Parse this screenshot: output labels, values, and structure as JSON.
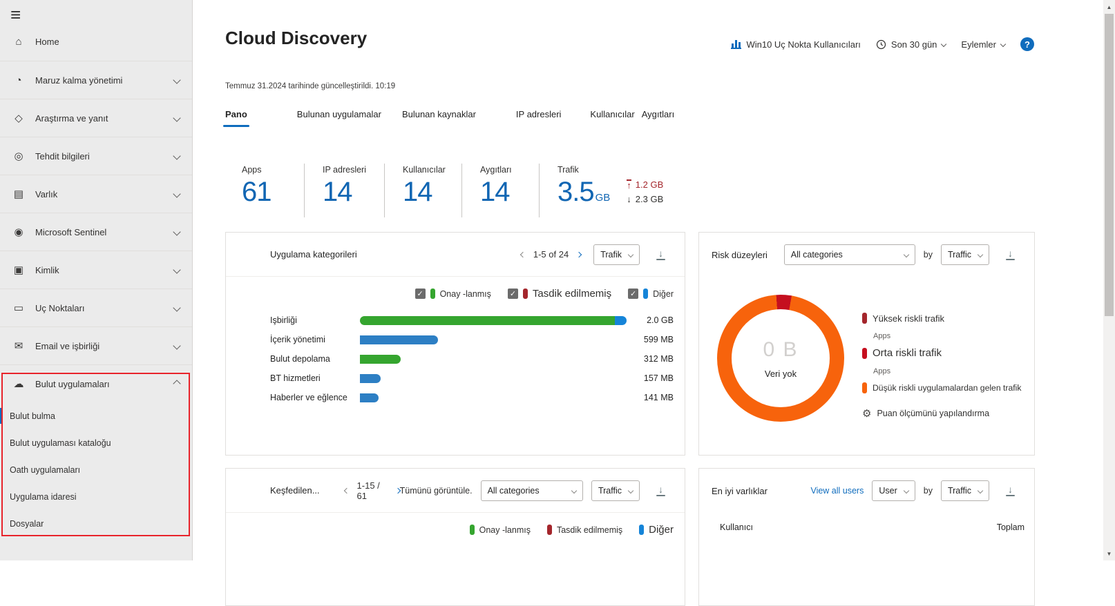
{
  "colors": {
    "accent": "#0f6cbd",
    "stat_number": "#1166b3",
    "green": "#35a52f",
    "blue": "#2d7fc4",
    "other_blue": "#1584d8",
    "maroon": "#a4262c",
    "red": "#c50f1f",
    "orange": "#f7630c",
    "highlight": "#e8242b"
  },
  "sidebar": {
    "menu_icon": "menu",
    "items": [
      {
        "label": "Home",
        "icon": "home"
      },
      {
        "label": "Maruz kalma yönetimi",
        "icon": "exposure"
      },
      {
        "label": "Araştırma ve yanıt",
        "icon": "investigation"
      },
      {
        "label": "Tehdit bilgileri",
        "icon": "threat"
      },
      {
        "label": "Varlık",
        "icon": "assets"
      },
      {
        "label": "Microsoft Sentinel",
        "icon": "sentinel"
      },
      {
        "label": "Kimlik",
        "icon": "identity"
      },
      {
        "label": "Uç Noktaları",
        "icon": "endpoints"
      },
      {
        "label": "Email ve işbirliği",
        "icon": "email"
      },
      {
        "label": "Bulut uygulamaları",
        "icon": "cloud"
      }
    ],
    "subitems": [
      {
        "label": "Bulut bulma"
      },
      {
        "label": "Bulut uygulaması kataloğu"
      },
      {
        "label": "Oath uygulamaları"
      },
      {
        "label": "Uygulama idaresi"
      },
      {
        "label": "Dosyalar"
      }
    ]
  },
  "header": {
    "title": "Cloud Discovery",
    "updated": "Temmuz 31.2024 tarihinde güncelleştirildi. 10:19",
    "report_link": "Win10 Uç Nokta Kullanıcıları",
    "time_range": "Son 30 gün",
    "actions_label": "Eylemler",
    "help_label": "?"
  },
  "tabs": [
    {
      "label": "Pano"
    },
    {
      "label": "Bulunan uygulamalar"
    },
    {
      "label": "Bulunan kaynaklar"
    },
    {
      "label": "IP adresleri"
    },
    {
      "label": "Kullanıcılar"
    },
    {
      "label": "Aygıtları"
    }
  ],
  "stats": [
    {
      "label": "Apps",
      "value": "61"
    },
    {
      "label": "IP adresleri",
      "value": "14"
    },
    {
      "label": "Kullanıcılar",
      "value": "14"
    },
    {
      "label": "Aygıtları",
      "value": "14"
    },
    {
      "label": "Trafik",
      "value": "3.5",
      "unit": "GB",
      "upload": "1.2 GB",
      "download": "2.3 GB"
    }
  ],
  "cards": {
    "app_categories": {
      "title": "Uygulama kategorileri",
      "pagination": "1-5 of 24",
      "metric_select": "Trafik",
      "legend": [
        {
          "label": "Onay -lanmış",
          "color": "green"
        },
        {
          "label": "Tasdik edilmemiş",
          "color": "maroon"
        },
        {
          "label": "Diğer",
          "color": "other_blue"
        }
      ],
      "rows": [
        {
          "label": "Işbirliği",
          "value": "2.0 GB",
          "total_mb": 2048,
          "segments": [
            {
              "color": "green",
              "mb": 1958
            },
            {
              "color": "other_blue",
              "mb": 90
            }
          ]
        },
        {
          "label": "İçerik yönetimi",
          "value": "599 MB",
          "total_mb": 599,
          "segments": [
            {
              "color": "blue",
              "mb": 599
            }
          ]
        },
        {
          "label": "Bulut depolama",
          "value": "312 MB",
          "total_mb": 312,
          "segments": [
            {
              "color": "green",
              "mb": 312
            }
          ]
        },
        {
          "label": "BT hizmetleri",
          "value": "157 MB",
          "total_mb": 157,
          "segments": [
            {
              "color": "blue",
              "mb": 157
            }
          ]
        },
        {
          "label": "Haberler ve eğlence",
          "value": "141 MB",
          "total_mb": 141,
          "segments": [
            {
              "color": "blue",
              "mb": 141
            }
          ]
        }
      ]
    },
    "risk": {
      "title": "Risk düzeyleri",
      "category_select": "All categories",
      "by_label": "by",
      "metric_select": "Traffic",
      "donut": {
        "center_value": "0 B",
        "center_label": "Veri yok"
      },
      "legend": [
        {
          "label": "Yüksek riskli trafik",
          "sub": "Apps",
          "color": "maroon"
        },
        {
          "label": "Orta riskli trafik",
          "sub": "Apps",
          "color": "red"
        },
        {
          "label": "Düşük riskli uygulamalardan gelen trafik",
          "color": "orange"
        }
      ],
      "configure_icon": "gear",
      "configure_label": "Puan ölçümünü yapılandırma"
    },
    "discovered": {
      "title": "Keşfedilen...",
      "pagination": "1-15 / 61",
      "view_all": "Tümünü görüntüle.",
      "category_select": "All categories",
      "metric_select": "Traffic",
      "legend": [
        {
          "label": "Onay -lanmış",
          "color": "green"
        },
        {
          "label": "Tasdik edilmemiş",
          "color": "maroon"
        },
        {
          "label": "Diğer",
          "color": "other_blue"
        }
      ]
    },
    "entities": {
      "title": "En iyi varlıklar",
      "view_all": "View all users",
      "entity_select": "User",
      "by_label": "by",
      "metric_select": "Traffic",
      "columns": {
        "user": "Kullanıcı",
        "total": "Toplam"
      }
    }
  },
  "chart_data": [
    {
      "type": "bar",
      "title": "Uygulama kategorileri",
      "orientation": "horizontal",
      "categories": [
        "Işbirliği",
        "İçerik yönetimi",
        "Bulut depolama",
        "BT hizmetleri",
        "Haberler ve eğlence"
      ],
      "values_mb": [
        2048,
        599,
        312,
        157,
        141
      ],
      "value_labels": [
        "2.0 GB",
        "599 MB",
        "312 MB",
        "157 MB",
        "141 MB"
      ],
      "legend": [
        "Onay -lanmış",
        "Tasdik edilmemiş",
        "Diğer"
      ]
    },
    {
      "type": "pie",
      "title": "Risk düzeyleri",
      "center_value": "0 B",
      "center_label": "Veri yok",
      "slices": [
        {
          "label": "Düşük riskli trafik",
          "color": "#f7630c",
          "pct": 96.2
        },
        {
          "label": "Orta riskli trafik",
          "color": "#c50f1f",
          "pct": 3.8
        }
      ]
    }
  ]
}
